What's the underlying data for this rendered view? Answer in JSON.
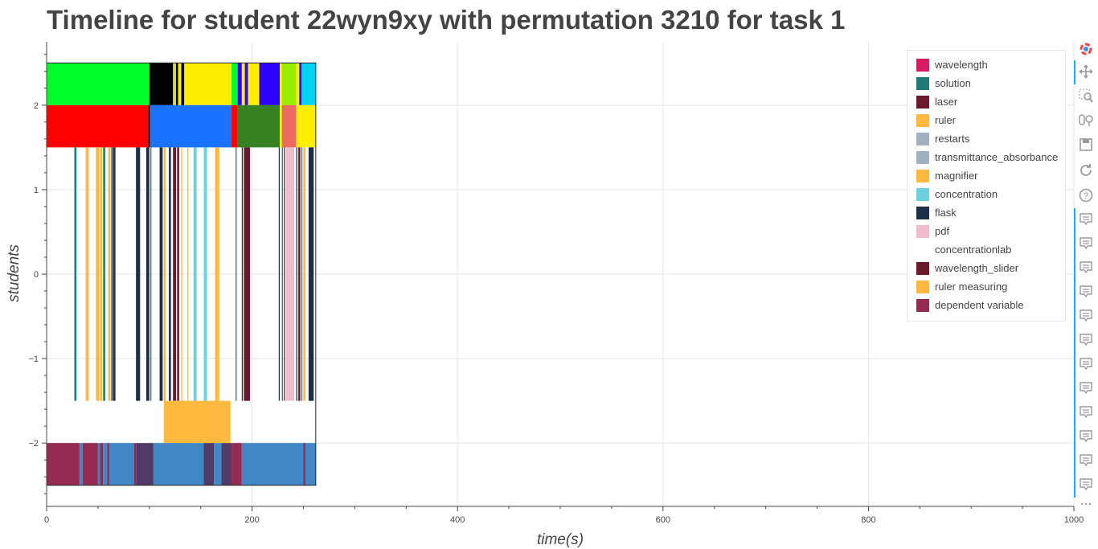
{
  "chart_data": {
    "type": "timeline",
    "title": "Timeline for student 22wyn9xy with permutation 3210 for task 1",
    "xlabel": "time(s)",
    "ylabel": "students",
    "xlim": [
      0,
      1000
    ],
    "ylim": [
      -2.75,
      2.75
    ],
    "xticks": [
      0,
      200,
      400,
      600,
      800,
      1000
    ],
    "yticks": [
      -2,
      -1,
      0,
      1,
      2
    ],
    "ytick_labels": [
      "−2",
      "−1",
      "0",
      "1",
      "2"
    ],
    "grid": true,
    "legend_position": "top-right",
    "legend": [
      {
        "label": "wavelength",
        "color": "#d81b60"
      },
      {
        "label": "solution",
        "color": "#1e7b75"
      },
      {
        "label": "laser",
        "color": "#6b1a2e"
      },
      {
        "label": "ruler",
        "color": "#ffb93e"
      },
      {
        "label": "restarts",
        "color": "#a2afbe"
      },
      {
        "label": "transmittance_absorbance",
        "color": "#a2afbe"
      },
      {
        "label": "magnifier",
        "color": "#ffb93e"
      },
      {
        "label": "concentration",
        "color": "#6bd1dc"
      },
      {
        "label": "flask",
        "color": "#1c2e48"
      },
      {
        "label": "pdf",
        "color": "#efbccc"
      },
      {
        "label": "concentrationlab",
        "color": "#ffffff"
      },
      {
        "label": "wavelength_slider",
        "color": "#6b1a2e"
      },
      {
        "label": "ruler measuring",
        "color": "#ffb93e"
      },
      {
        "label": "dependent variable",
        "color": "#952b52"
      }
    ],
    "rows": [
      {
        "y0": 2,
        "y1": 2.5,
        "segments": [
          {
            "x0": 0,
            "x1": 100,
            "color": "#00ff2a"
          },
          {
            "x0": 100,
            "x1": 123,
            "color": "#000000"
          },
          {
            "x0": 123,
            "x1": 126,
            "color": "#cfd64a"
          },
          {
            "x0": 126,
            "x1": 128,
            "color": "#000000"
          },
          {
            "x0": 128,
            "x1": 131,
            "color": "#ffee00"
          },
          {
            "x0": 131,
            "x1": 134,
            "color": "#000000"
          },
          {
            "x0": 134,
            "x1": 137,
            "color": "#ffee00"
          },
          {
            "x0": 137,
            "x1": 180,
            "color": "#ffee00"
          },
          {
            "x0": 180,
            "x1": 186,
            "color": "#00ff2a"
          },
          {
            "x0": 186,
            "x1": 190,
            "color": "#2b00ff"
          },
          {
            "x0": 190,
            "x1": 193,
            "color": "#ffee00"
          },
          {
            "x0": 193,
            "x1": 196,
            "color": "#2b00ff"
          },
          {
            "x0": 196,
            "x1": 207,
            "color": "#ffee00"
          },
          {
            "x0": 207,
            "x1": 227,
            "color": "#2b00ff"
          },
          {
            "x0": 227,
            "x1": 229,
            "color": "#ffee00"
          },
          {
            "x0": 229,
            "x1": 243,
            "color": "#99ee00"
          },
          {
            "x0": 243,
            "x1": 246,
            "color": "#ffee00"
          },
          {
            "x0": 246,
            "x1": 248,
            "color": "#2b00ff"
          },
          {
            "x0": 248,
            "x1": 262,
            "color": "#00d4f0"
          }
        ]
      },
      {
        "y0": 1.5,
        "y1": 2,
        "segments": [
          {
            "x0": 0,
            "x1": 99,
            "color": "#ff0000"
          },
          {
            "x0": 99,
            "x1": 101,
            "color": "#1c2e48"
          },
          {
            "x0": 101,
            "x1": 180,
            "color": "#1a73ff"
          },
          {
            "x0": 180,
            "x1": 186,
            "color": "#ff0000"
          },
          {
            "x0": 186,
            "x1": 227,
            "color": "#368223"
          },
          {
            "x0": 227,
            "x1": 229,
            "color": "#ffee00"
          },
          {
            "x0": 229,
            "x1": 243,
            "color": "#ed6964"
          },
          {
            "x0": 243,
            "x1": 262,
            "color": "#ffee00"
          }
        ]
      },
      {
        "y0": -1.5,
        "y1": 1.5,
        "segments": [
          {
            "x0": 27,
            "x1": 29,
            "color": "#1e7b75"
          },
          {
            "x0": 38,
            "x1": 41,
            "color": "#ffb93e"
          },
          {
            "x0": 48,
            "x1": 51,
            "color": "#ffb93e"
          },
          {
            "x0": 52,
            "x1": 54,
            "color": "#ffb93e"
          },
          {
            "x0": 55,
            "x1": 57,
            "color": "#1e7b75"
          },
          {
            "x0": 60,
            "x1": 62,
            "color": "#ffb93e"
          },
          {
            "x0": 63,
            "x1": 64,
            "color": "#1c2e48"
          },
          {
            "x0": 64.5,
            "x1": 67,
            "color": "#1c2e48"
          },
          {
            "x0": 87,
            "x1": 91,
            "color": "#1c2e48"
          },
          {
            "x0": 97,
            "x1": 100,
            "color": "#1c2e48"
          },
          {
            "x0": 101,
            "x1": 102,
            "color": "#1e7b75"
          },
          {
            "x0": 110,
            "x1": 113,
            "color": "#1c2e48"
          },
          {
            "x0": 114,
            "x1": 116,
            "color": "#ffb93e"
          },
          {
            "x0": 119,
            "x1": 121,
            "color": "#1c2e48"
          },
          {
            "x0": 123,
            "x1": 126,
            "color": "#6b1a2e"
          },
          {
            "x0": 127,
            "x1": 129,
            "color": "#6b1a2e"
          },
          {
            "x0": 131,
            "x1": 132,
            "color": "#ffb93e"
          },
          {
            "x0": 137,
            "x1": 138,
            "color": "#ffb93e"
          },
          {
            "x0": 143,
            "x1": 146,
            "color": "#6bd1dc"
          },
          {
            "x0": 153,
            "x1": 156,
            "color": "#6bd1dc"
          },
          {
            "x0": 164,
            "x1": 168,
            "color": "#ffb93e"
          },
          {
            "x0": 184,
            "x1": 185,
            "color": "#1e7b75"
          },
          {
            "x0": 190,
            "x1": 191,
            "color": "#1c2e48"
          },
          {
            "x0": 192,
            "x1": 198,
            "color": "#6b1a2e"
          },
          {
            "x0": 226,
            "x1": 227,
            "color": "#1c2e48"
          },
          {
            "x0": 229,
            "x1": 230,
            "color": "#1e7b75"
          },
          {
            "x0": 231,
            "x1": 232,
            "color": "#6b1a2e"
          },
          {
            "x0": 233,
            "x1": 241,
            "color": "#efbccc"
          },
          {
            "x0": 243,
            "x1": 244,
            "color": "#1c2e48"
          },
          {
            "x0": 245,
            "x1": 247,
            "color": "#6b1a2e"
          },
          {
            "x0": 248,
            "x1": 249,
            "color": "#1e7b75"
          },
          {
            "x0": 250,
            "x1": 252,
            "color": "#ffb93e"
          },
          {
            "x0": 255,
            "x1": 260,
            "color": "#1c2e48"
          }
        ]
      },
      {
        "y0": -2,
        "y1": -1.5,
        "segments": [
          {
            "x0": 114,
            "x1": 179,
            "color": "#ffb93e"
          }
        ]
      },
      {
        "y0": -2.5,
        "y1": -2,
        "segments": [
          {
            "x0": 0,
            "x1": 32,
            "color": "#952b52"
          },
          {
            "x0": 32,
            "x1": 35,
            "color": "#3f88c5"
          },
          {
            "x0": 35,
            "x1": 50,
            "color": "#952b52"
          },
          {
            "x0": 50,
            "x1": 52,
            "color": "#3f88c5"
          },
          {
            "x0": 52,
            "x1": 55,
            "color": "#952b52"
          },
          {
            "x0": 55,
            "x1": 59,
            "color": "#3f88c5"
          },
          {
            "x0": 59,
            "x1": 61,
            "color": "#952b52"
          },
          {
            "x0": 61,
            "x1": 85,
            "color": "#3f88c5"
          },
          {
            "x0": 85,
            "x1": 87,
            "color": "#952b52"
          },
          {
            "x0": 87,
            "x1": 104,
            "color": "#513a68"
          },
          {
            "x0": 104,
            "x1": 153,
            "color": "#3f88c5"
          },
          {
            "x0": 153,
            "x1": 163,
            "color": "#513a68"
          },
          {
            "x0": 163,
            "x1": 170,
            "color": "#3f88c5"
          },
          {
            "x0": 170,
            "x1": 180,
            "color": "#513a68"
          },
          {
            "x0": 180,
            "x1": 190,
            "color": "#952b52"
          },
          {
            "x0": 190,
            "x1": 250,
            "color": "#3f88c5"
          },
          {
            "x0": 250,
            "x1": 252,
            "color": "#952b52"
          },
          {
            "x0": 252,
            "x1": 262,
            "color": "#3f88c5"
          }
        ]
      }
    ]
  },
  "toolbar": [
    {
      "name": "bokeh-logo-icon"
    },
    {
      "name": "pan-icon"
    },
    {
      "name": "box-zoom-icon"
    },
    {
      "name": "wheel-zoom-icon"
    },
    {
      "name": "save-icon"
    },
    {
      "name": "reset-icon"
    },
    {
      "name": "help-icon"
    },
    {
      "name": "hover-icon"
    },
    {
      "name": "hover-icon"
    },
    {
      "name": "hover-icon"
    },
    {
      "name": "hover-icon"
    },
    {
      "name": "hover-icon"
    },
    {
      "name": "hover-icon"
    },
    {
      "name": "hover-icon"
    },
    {
      "name": "hover-icon"
    },
    {
      "name": "hover-icon"
    },
    {
      "name": "hover-icon"
    },
    {
      "name": "hover-icon"
    },
    {
      "name": "hover-icon"
    },
    {
      "name": "more-icon"
    }
  ],
  "colors": {
    "grid": "#e5e5e5",
    "axis": "#444444",
    "toolbar_accent": "#26aae1"
  }
}
